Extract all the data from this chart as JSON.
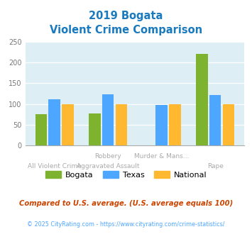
{
  "title_line1": "2019 Bogata",
  "title_line2": "Violent Crime Comparison",
  "cat_labels_top": [
    "",
    "Robbery",
    "Murder & Mans...",
    ""
  ],
  "cat_labels_bot": [
    "All Violent Crime",
    "Aggravated Assault",
    "",
    "Rape"
  ],
  "bogata": [
    75,
    77,
    0,
    222
  ],
  "texas": [
    112,
    123,
    98,
    121
  ],
  "national": [
    100,
    100,
    100,
    100
  ],
  "bogata_color": "#7db32e",
  "texas_color": "#4da6ff",
  "national_color": "#ffb830",
  "ylim": [
    0,
    250
  ],
  "yticks": [
    0,
    50,
    100,
    150,
    200,
    250
  ],
  "bg_color": "#ddeef5",
  "title_color": "#1a7abf",
  "axis_label_color": "#aaaaaa",
  "footnote1": "Compared to U.S. average. (U.S. average equals 100)",
  "footnote2": "© 2025 CityRating.com - https://www.cityrating.com/crime-statistics/",
  "footnote1_color": "#cc4400",
  "footnote2_color": "#4da6ff",
  "legend_labels": [
    "Bogata",
    "Texas",
    "National"
  ],
  "bar_width": 0.22,
  "bar_gap": 0.03
}
